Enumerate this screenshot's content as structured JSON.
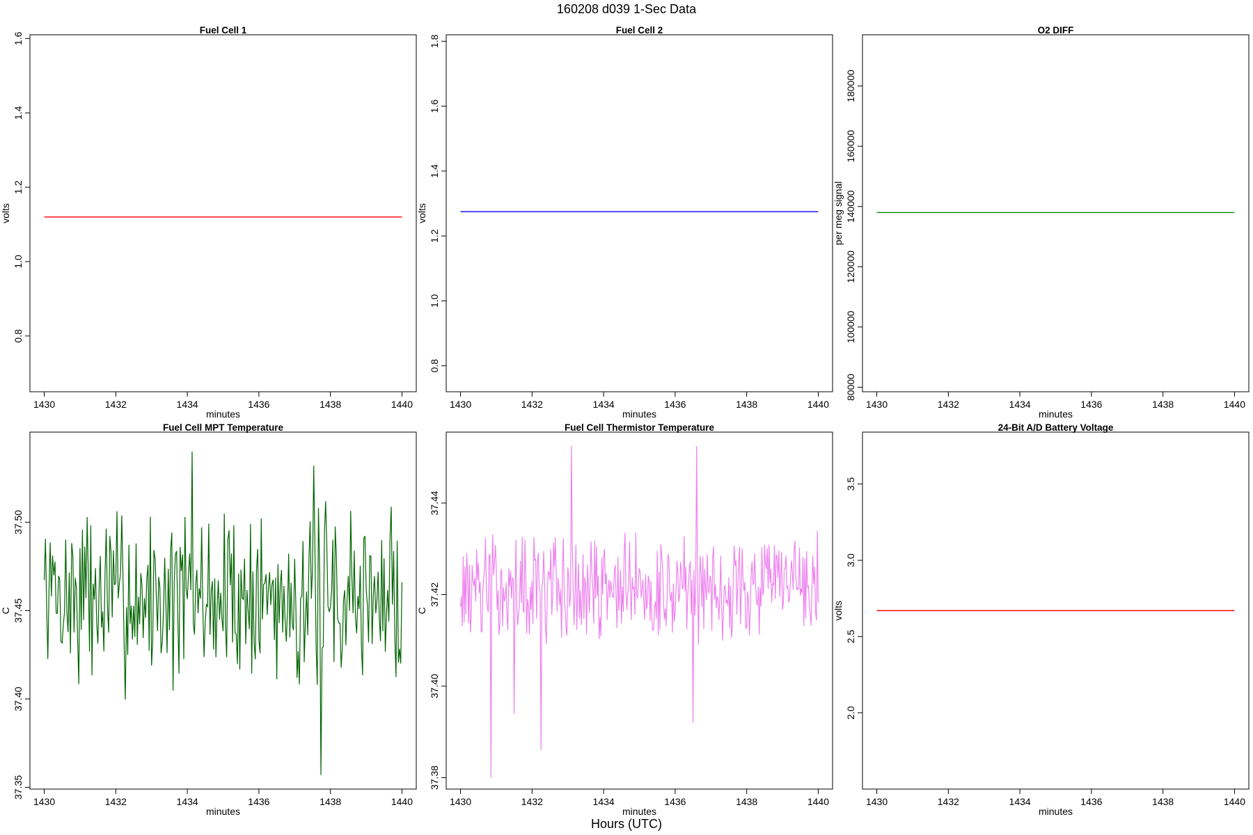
{
  "figure": {
    "title": "160208   d039   1-Sec Data",
    "xlabel": "Hours (UTC)"
  },
  "chart_data": [
    {
      "type": "line",
      "title": "Fuel Cell 1",
      "xlabel": "minutes",
      "ylabel": "volts",
      "xlim": [
        1429.6,
        1440.4
      ],
      "ylim": [
        0.65,
        1.61
      ],
      "xticks": [
        1430,
        1432,
        1434,
        1436,
        1438,
        1440
      ],
      "yticks": [
        0.8,
        1.0,
        1.2,
        1.4,
        1.6
      ],
      "color": "#ff0000",
      "series": [
        {
          "x": [
            1430,
            1440
          ],
          "y": [
            1.12,
            1.12
          ]
        }
      ]
    },
    {
      "type": "line",
      "title": "Fuel Cell 2",
      "xlabel": "minutes",
      "ylabel": "volts",
      "xlim": [
        1429.6,
        1440.4
      ],
      "ylim": [
        0.72,
        1.82
      ],
      "xticks": [
        1430,
        1432,
        1434,
        1436,
        1438,
        1440
      ],
      "yticks": [
        0.8,
        1.0,
        1.2,
        1.4,
        1.6,
        1.8
      ],
      "color": "#0000ff",
      "series": [
        {
          "x": [
            1430,
            1440
          ],
          "y": [
            1.275,
            1.275
          ]
        }
      ]
    },
    {
      "type": "line",
      "title": "O2 DIFF",
      "xlabel": "minutes",
      "ylabel": "per meg signal",
      "xlim": [
        1429.6,
        1440.4
      ],
      "ylim": [
        78500,
        197000
      ],
      "xticks": [
        1430,
        1432,
        1434,
        1436,
        1438,
        1440
      ],
      "yticks": [
        80000,
        100000,
        120000,
        140000,
        160000,
        180000
      ],
      "color": "#008b00",
      "series": [
        {
          "x": [
            1430,
            1440
          ],
          "y": [
            138000,
            138000
          ]
        }
      ]
    },
    {
      "type": "line",
      "title": "Fuel Cell MPT Temperature",
      "xlabel": "minutes",
      "ylabel": "C",
      "xlim": [
        1429.6,
        1440.4
      ],
      "ylim": [
        37.349,
        37.551
      ],
      "xticks": [
        1430,
        1432,
        1434,
        1436,
        1438,
        1440
      ],
      "yticks": [
        37.35,
        37.4,
        37.45,
        37.5
      ],
      "color": "#006400",
      "noise": {
        "x0": 1430,
        "x1": 1440,
        "n": 300,
        "center": 37.458,
        "amp": 0.055,
        "seed": 7,
        "min": 37.398,
        "max": 37.54,
        "spikes": [
          {
            "x": 1437.75,
            "y": 37.357
          },
          {
            "x": 1434.15,
            "y": 37.54
          },
          {
            "x": 1437.55,
            "y": 37.532
          }
        ]
      }
    },
    {
      "type": "line",
      "title": "Fuel Cell Thermistor Temperature",
      "xlabel": "minutes",
      "ylabel": "C",
      "xlim": [
        1429.6,
        1440.4
      ],
      "ylim": [
        37.3775,
        37.4555
      ],
      "xticks": [
        1430,
        1432,
        1434,
        1436,
        1438,
        1440
      ],
      "yticks": [
        37.38,
        37.4,
        37.42,
        37.44
      ],
      "color": "#ee82ee",
      "noise": {
        "x0": 1430,
        "x1": 1440,
        "n": 400,
        "center": 37.4215,
        "amp": 0.0125,
        "seed": 13,
        "min": 37.399,
        "max": 37.453,
        "spikes": [
          {
            "x": 1430.85,
            "y": 37.38
          },
          {
            "x": 1432.25,
            "y": 37.386
          },
          {
            "x": 1431.5,
            "y": 37.394
          },
          {
            "x": 1436.5,
            "y": 37.392
          },
          {
            "x": 1433.1,
            "y": 37.4525
          },
          {
            "x": 1436.6,
            "y": 37.4525
          }
        ]
      }
    },
    {
      "type": "line",
      "title": "24-Bit A/D Battery Voltage",
      "xlabel": "minutes",
      "ylabel": "volts",
      "xlim": [
        1429.6,
        1440.4
      ],
      "ylim": [
        1.5,
        3.84
      ],
      "xticks": [
        1430,
        1432,
        1434,
        1436,
        1438,
        1440
      ],
      "yticks": [
        2.0,
        2.5,
        3.0,
        3.5
      ],
      "color": "#ff0000",
      "series": [
        {
          "x": [
            1430,
            1440
          ],
          "y": [
            2.67,
            2.67
          ]
        }
      ]
    }
  ]
}
